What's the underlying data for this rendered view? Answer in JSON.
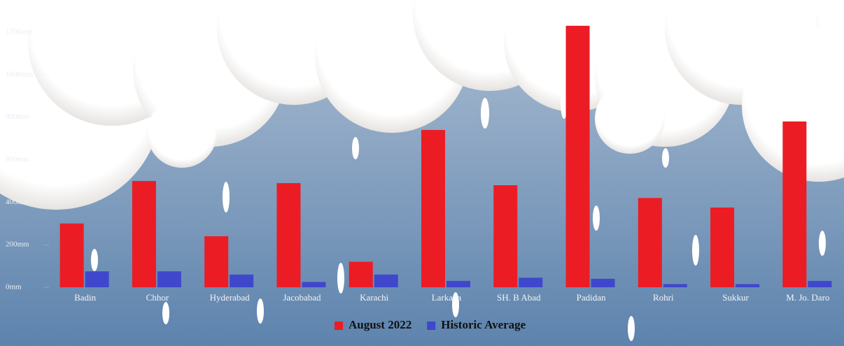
{
  "chart_data": {
    "type": "bar",
    "categories": [
      "Badin",
      "Chhor",
      "Hyderabad",
      "Jacobabad",
      "Karachi",
      "Larkana",
      "SH. B Abad",
      "Padidan",
      "Rohri",
      "Sukkur",
      "M. Jo. Daro"
    ],
    "series": [
      {
        "name": "August 2022",
        "color": "#ec1c24",
        "values": [
          300,
          500,
          240,
          490,
          120,
          740,
          480,
          1230,
          420,
          375,
          780
        ]
      },
      {
        "name": "Historic Average",
        "color": "#3f48cc",
        "values": [
          75,
          75,
          60,
          25,
          60,
          30,
          45,
          40,
          15,
          15,
          30
        ]
      }
    ],
    "ylim": [
      0,
      1200
    ],
    "yticks": [
      {
        "value": 0,
        "label": "0mm"
      },
      {
        "value": 200,
        "label": "200mm"
      },
      {
        "value": 400,
        "label": "400mm"
      },
      {
        "value": 600,
        "label": "600mm"
      },
      {
        "value": 800,
        "label": "800mm"
      },
      {
        "value": 1000,
        "label": "1000mm"
      },
      {
        "value": 1200,
        "label": "1200mm"
      }
    ],
    "legend": "bottom"
  }
}
